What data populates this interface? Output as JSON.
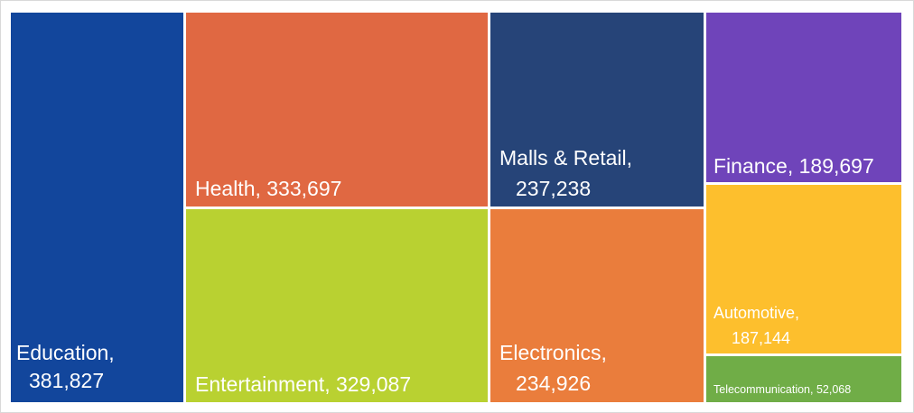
{
  "chart_data": {
    "type": "treemap",
    "title": "",
    "items": [
      {
        "name": "Education",
        "value": 381827,
        "label_lines": [
          "Education,",
          "381,827"
        ],
        "color": "#12469c"
      },
      {
        "name": "Health",
        "value": 333697,
        "label_lines": [
          "Health, 333,697"
        ],
        "color": "#e06842"
      },
      {
        "name": "Entertainment",
        "value": 329087,
        "label_lines": [
          "Entertainment, 329,087"
        ],
        "color": "#b9d131"
      },
      {
        "name": "Malls & Retail",
        "value": 237238,
        "label_lines": [
          "Malls & Retail,",
          "237,238"
        ],
        "color": "#264478"
      },
      {
        "name": "Electronics",
        "value": 234926,
        "label_lines": [
          "Electronics,",
          "234,926"
        ],
        "color": "#ea7d3c"
      },
      {
        "name": "Finance",
        "value": 189697,
        "label_lines": [
          "Finance, 189,697"
        ],
        "color": "#6f44ba"
      },
      {
        "name": "Automotive",
        "value": 187144,
        "label_lines": [
          "Automotive,",
          "187,144"
        ],
        "color": "#fdbf2d"
      },
      {
        "name": "Telecommunication",
        "value": 52068,
        "label_lines": [
          "Telecommunication, 52,068"
        ],
        "color": "#70ad47"
      }
    ]
  }
}
